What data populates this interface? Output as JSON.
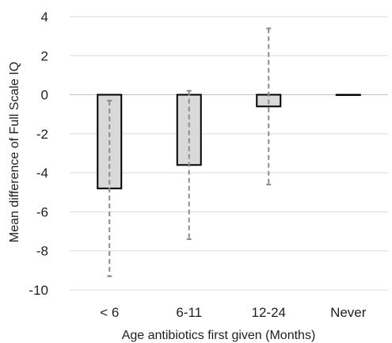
{
  "chart_data": {
    "type": "bar",
    "categories": [
      "< 6",
      "6-11",
      "12-24",
      "Never"
    ],
    "values": [
      -4.8,
      -3.6,
      -0.6,
      0.0
    ],
    "error_bars": [
      {
        "low": -9.3,
        "high": -0.3
      },
      {
        "low": -7.4,
        "high": 0.2
      },
      {
        "low": -4.6,
        "high": 3.4
      },
      null
    ],
    "xlabel": "Age antibiotics first given (Months)",
    "ylabel": "Mean difference of Full Scale IQ",
    "ylim": [
      -10,
      4
    ],
    "yticks": [
      "4",
      "2",
      "0",
      "-2",
      "-4",
      "-6",
      "-8",
      "-10"
    ],
    "grid": true,
    "colors": {
      "bar_fill": "#d9d9d9",
      "bar_stroke": "#000000",
      "error_bar": "#8c8c8c",
      "gridline": "#d9d9d9"
    }
  }
}
